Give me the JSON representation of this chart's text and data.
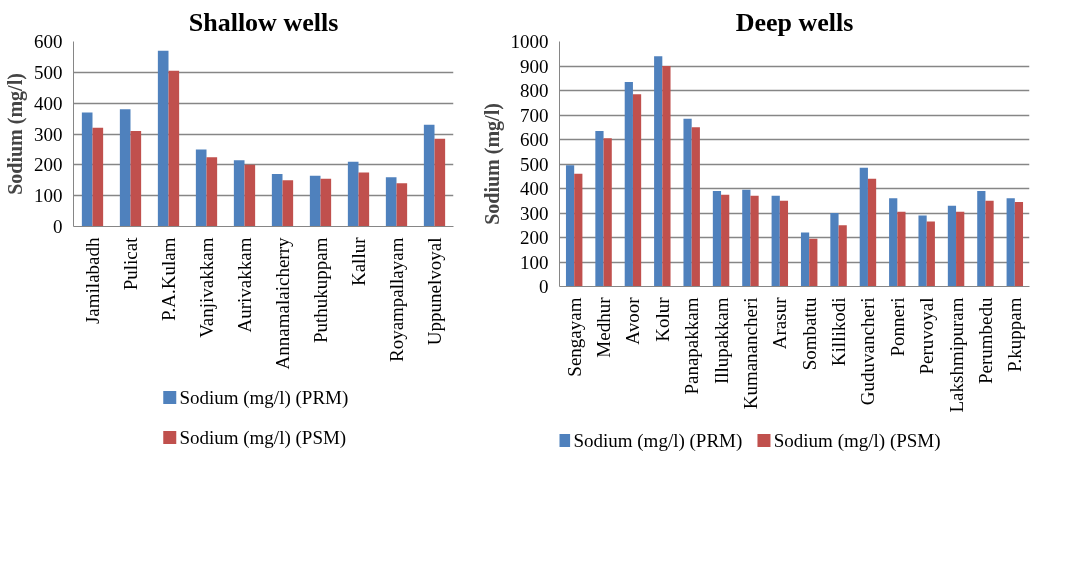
{
  "chart_data": [
    {
      "type": "bar",
      "title": "Shallow wells",
      "ylabel": "Sodium (mg/l)",
      "categories": [
        "Jamilabadh",
        "Pulicat",
        "P.A.Kulam",
        "Vanjivakkam",
        "Aurivakkam",
        "Annamalaicherry",
        "Puthukuppam",
        "Kallur",
        "Royampallayam",
        "Uppunelvoyal"
      ],
      "series": [
        {
          "name": "Sodium (mg/l) (PRM)",
          "color": "#4f81bd",
          "values": [
            370,
            380,
            570,
            250,
            215,
            170,
            165,
            210,
            160,
            330
          ]
        },
        {
          "name": "Sodium (mg/l) (PSM)",
          "color": "#c0504d",
          "values": [
            320,
            310,
            505,
            225,
            200,
            150,
            155,
            175,
            140,
            285
          ]
        }
      ],
      "ylim": [
        0,
        600
      ],
      "yticks": [
        0,
        100,
        200,
        300,
        400,
        500,
        600
      ],
      "grid": "y",
      "legend": "bottom"
    },
    {
      "type": "bar",
      "title": "Deep wells",
      "ylabel": "Sodium (mg/l)",
      "categories": [
        "Sengayam",
        "Medhur",
        "Avoor",
        "Kolur",
        "Panapakkam",
        "Illupakkam",
        "Kumanancheri",
        "Arasur",
        "Sombattu",
        "Killikodi",
        "Guduvancheri",
        "Ponneri",
        "Peruvoyal",
        "Lakshmipuram",
        "Perumbedu",
        "P.kuppam"
      ],
      "series": [
        {
          "name": "Sodium (mg/l) (PRM)",
          "color": "#4f81bd",
          "values": [
            495,
            635,
            835,
            940,
            685,
            390,
            395,
            370,
            220,
            300,
            485,
            360,
            290,
            330,
            390,
            360
          ]
        },
        {
          "name": "Sodium (mg/l) (PSM)",
          "color": "#c0504d",
          "values": [
            460,
            605,
            785,
            900,
            650,
            375,
            370,
            350,
            195,
            250,
            440,
            305,
            265,
            305,
            350,
            345
          ]
        }
      ],
      "ylim": [
        0,
        1000
      ],
      "yticks": [
        0,
        100,
        200,
        300,
        400,
        500,
        600,
        700,
        800,
        900,
        1000
      ],
      "grid": "y",
      "legend": "bottom"
    }
  ]
}
